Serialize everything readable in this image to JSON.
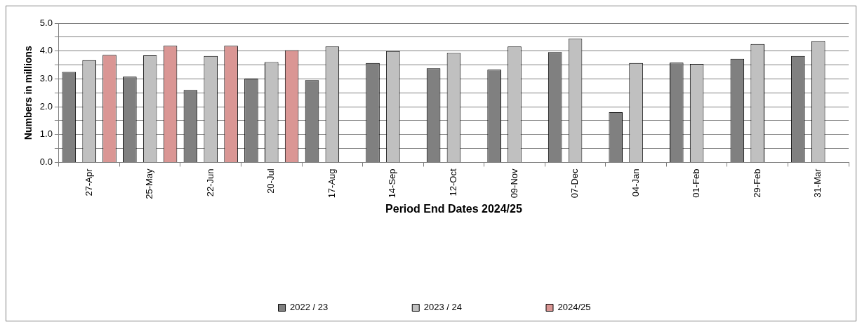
{
  "chart_data": {
    "type": "bar",
    "xlabel": "Period End Dates 2024/25",
    "ylabel": "Numbers in millions",
    "categories": [
      "27-Apr",
      "25-May",
      "22-Jun",
      "20-Jul",
      "17-Aug",
      "14-Sep",
      "12-Oct",
      "09-Nov",
      "07-Dec",
      "04-Jan",
      "01-Feb",
      "29-Feb",
      "31-Mar"
    ],
    "series": [
      {
        "name": "2022 / 23",
        "color": "#808080",
        "values": [
          3.25,
          3.08,
          2.6,
          3.01,
          2.95,
          3.57,
          3.38,
          3.33,
          3.96,
          1.8,
          3.58,
          3.72,
          3.82
        ]
      },
      {
        "name": "2023 / 24",
        "color": "#c0c0c0",
        "values": [
          3.67,
          3.84,
          3.82,
          3.6,
          4.16,
          4.0,
          3.93,
          4.16,
          4.44,
          3.57,
          3.54,
          4.25,
          4.35
        ]
      },
      {
        "name": "2024/25",
        "color": "#da9694",
        "values": [
          3.86,
          4.19,
          4.19,
          4.03,
          null,
          null,
          null,
          null,
          null,
          null,
          null,
          null,
          null
        ]
      }
    ],
    "ylim": [
      0,
      5
    ],
    "yticks": [
      {
        "value": 0,
        "label": "0.0"
      },
      {
        "value": 0.5,
        "label": null
      },
      {
        "value": 1,
        "label": "1.0"
      },
      {
        "value": 1.5,
        "label": null
      },
      {
        "value": 2,
        "label": "2.0"
      },
      {
        "value": 2.5,
        "label": null
      },
      {
        "value": 3,
        "label": "3.0"
      },
      {
        "value": 3.5,
        "label": null
      },
      {
        "value": 4,
        "label": "4.0"
      },
      {
        "value": 4.5,
        "label": null
      },
      {
        "value": 5,
        "label": "5.0"
      }
    ],
    "grid": "y",
    "legend": "bottom"
  }
}
